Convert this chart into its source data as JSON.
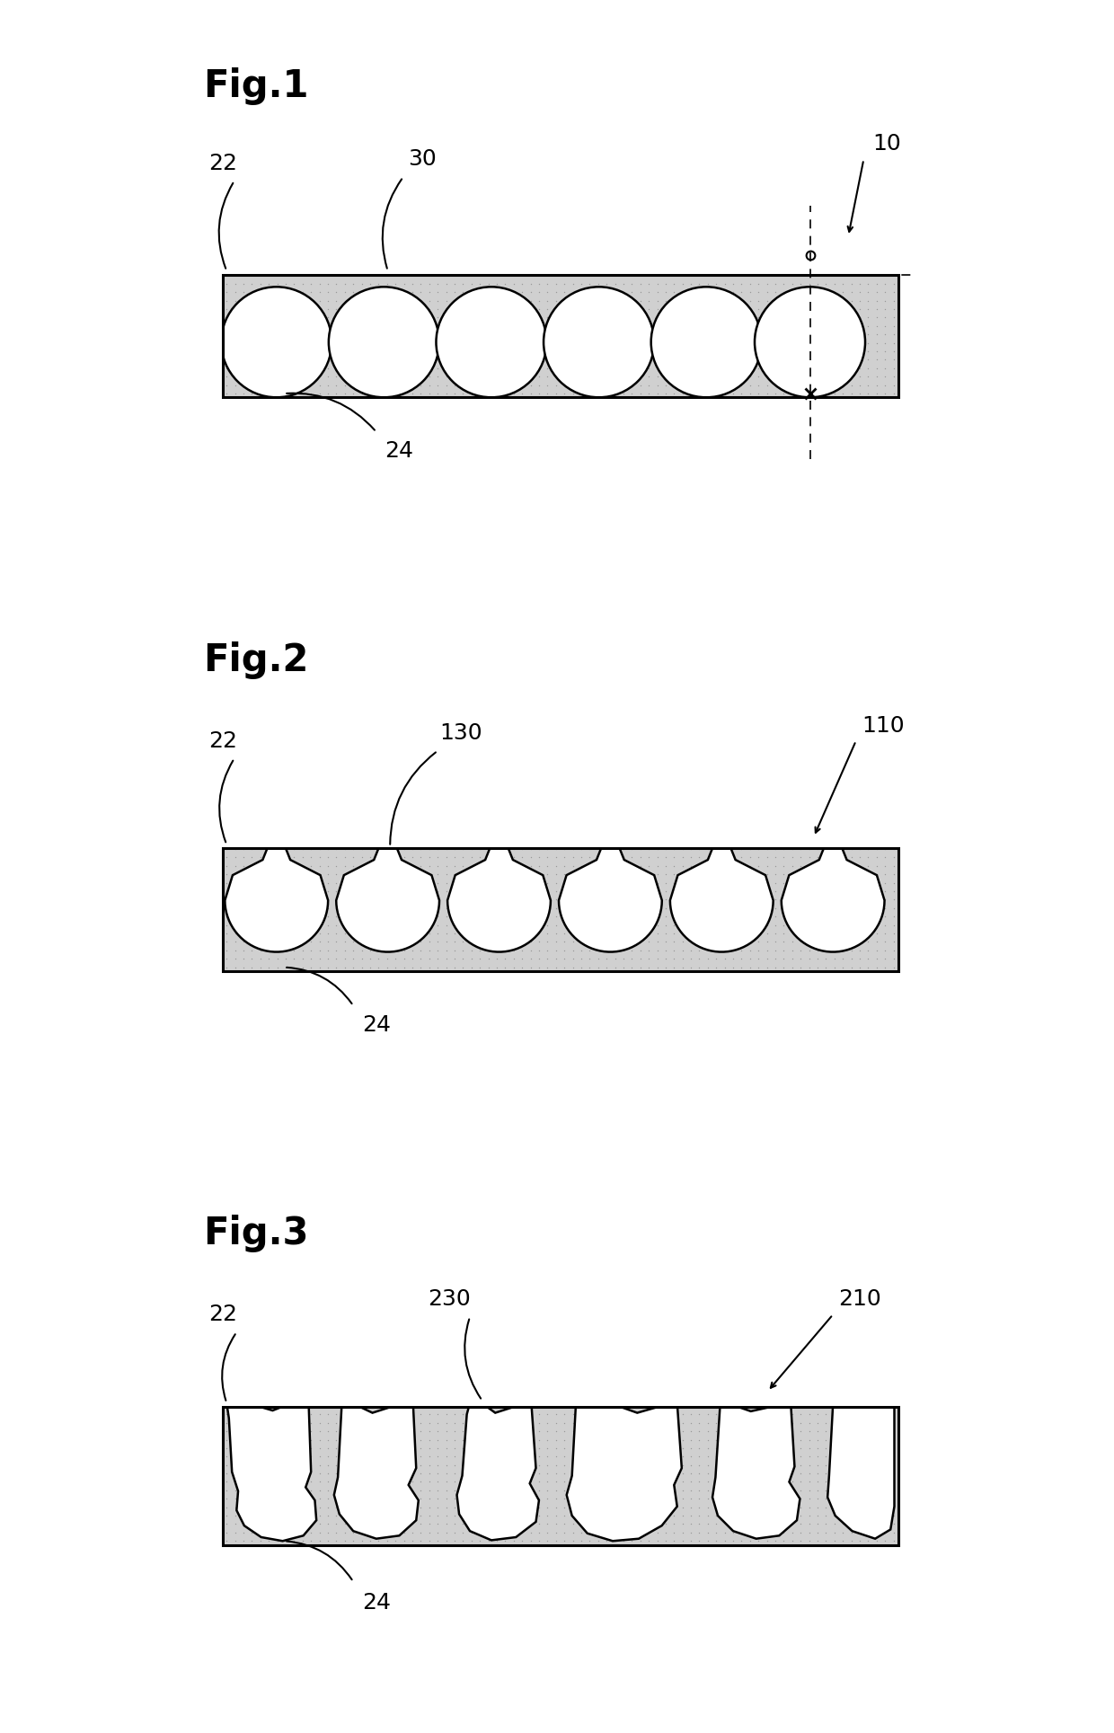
{
  "fig_labels": [
    "Fig.1",
    "Fig.2",
    "Fig.3"
  ],
  "fig_numbers": [
    "10",
    "110",
    "210"
  ],
  "label_22": "22",
  "label_24": "24",
  "label_30": "30",
  "label_130": "130",
  "label_230": "230",
  "bg_color": "#ffffff",
  "dot_color": "#999999",
  "outline_color": "#000000",
  "membrane_fill": "#d0d0d0",
  "pore_color": "#ffffff"
}
